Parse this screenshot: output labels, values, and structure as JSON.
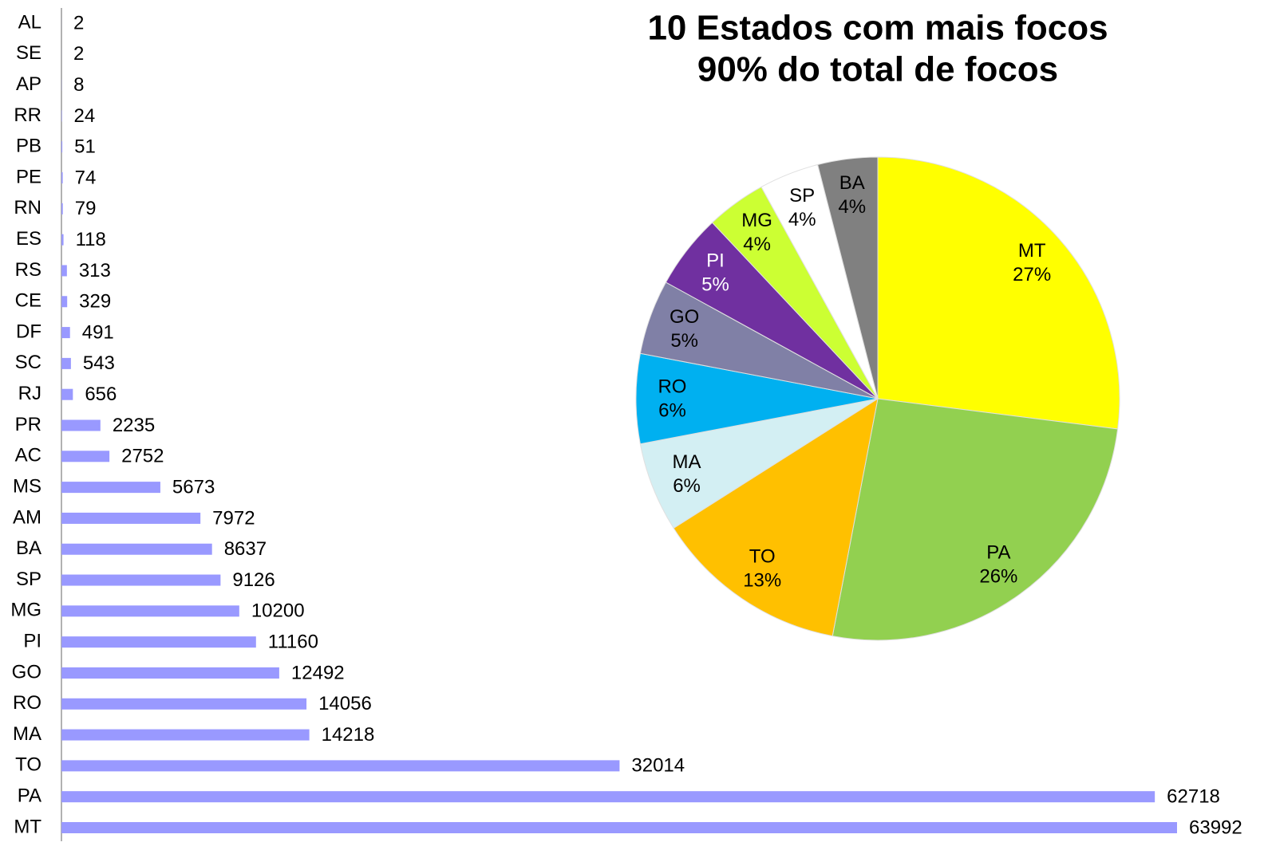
{
  "chart_data": [
    {
      "type": "bar",
      "orientation": "horizontal",
      "categories": [
        "AL",
        "SE",
        "AP",
        "RR",
        "PB",
        "PE",
        "RN",
        "ES",
        "RS",
        "CE",
        "DF",
        "SC",
        "RJ",
        "PR",
        "AC",
        "MS",
        "AM",
        "BA",
        "SP",
        "MG",
        "PI",
        "GO",
        "RO",
        "MA",
        "TO",
        "PA",
        "MT"
      ],
      "values": [
        2,
        2,
        8,
        24,
        51,
        74,
        79,
        118,
        313,
        329,
        491,
        543,
        656,
        2235,
        2752,
        5673,
        7972,
        8637,
        9126,
        10200,
        11160,
        12492,
        14056,
        14218,
        32014,
        62718,
        63992
      ],
      "color": "#9999ff"
    },
    {
      "type": "pie",
      "title": "10 Estados com mais focos",
      "subtitle": "90% do total de focos",
      "categories": [
        "MT",
        "PA",
        "TO",
        "MA",
        "RO",
        "GO",
        "PI",
        "MG",
        "SP",
        "BA"
      ],
      "values": [
        27,
        26,
        13,
        6,
        6,
        5,
        5,
        4,
        4,
        4
      ],
      "value_labels": [
        "27%",
        "26%",
        "13%",
        "6%",
        "6%",
        "5%",
        "5%",
        "4%",
        "4%",
        "4%"
      ],
      "colors": [
        "#ffff00",
        "#92d050",
        "#ffc000",
        "#d3eff3",
        "#00b0f0",
        "#8080a6",
        "#7030a0",
        "#ccff33",
        "#ffffff",
        "#808080"
      ]
    }
  ]
}
